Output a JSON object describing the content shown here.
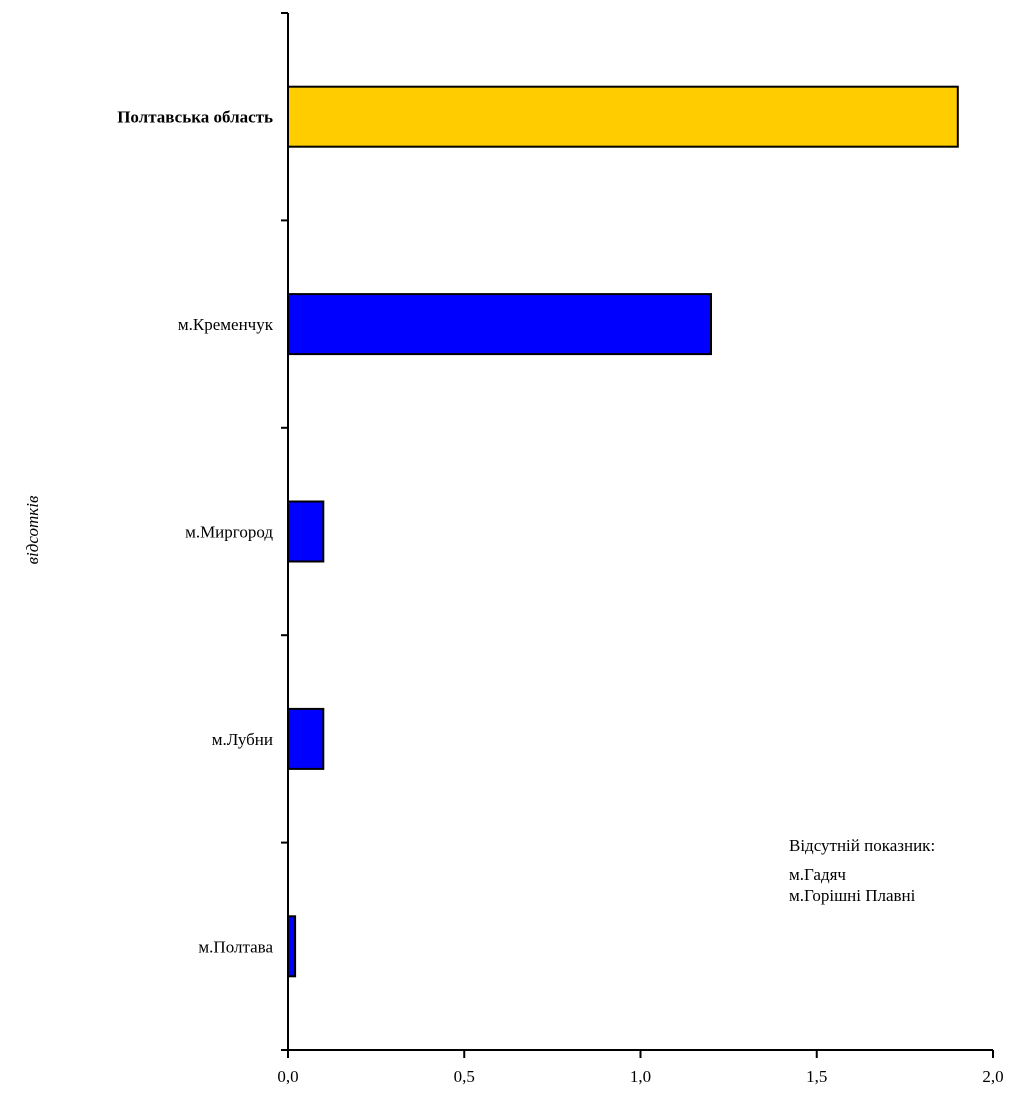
{
  "chart_data": {
    "type": "bar",
    "orientation": "horizontal",
    "ylabel": "відсотків",
    "xlim": [
      0,
      2
    ],
    "xticks": [
      "0,0",
      "0,5",
      "1,0",
      "1,5",
      "2,0"
    ],
    "xtick_values": [
      0,
      0.5,
      1.0,
      1.5,
      2.0
    ],
    "categories": [
      "Полтавська область",
      "м.Кременчук",
      "м.Миргород",
      "м.Лубни",
      "м.Полтава"
    ],
    "values": [
      1.9,
      1.2,
      0.1,
      0.1,
      0.02
    ],
    "bar_colors": [
      "#FFCC00",
      "#0000FF",
      "#0000FF",
      "#0000FF",
      "#0000FF"
    ],
    "bold_categories": [
      "Полтавська область"
    ],
    "grid": false
  },
  "note": {
    "title": "Відсутній показник:",
    "items": [
      "м.Гадяч",
      "м.Горішні Плавні"
    ]
  }
}
